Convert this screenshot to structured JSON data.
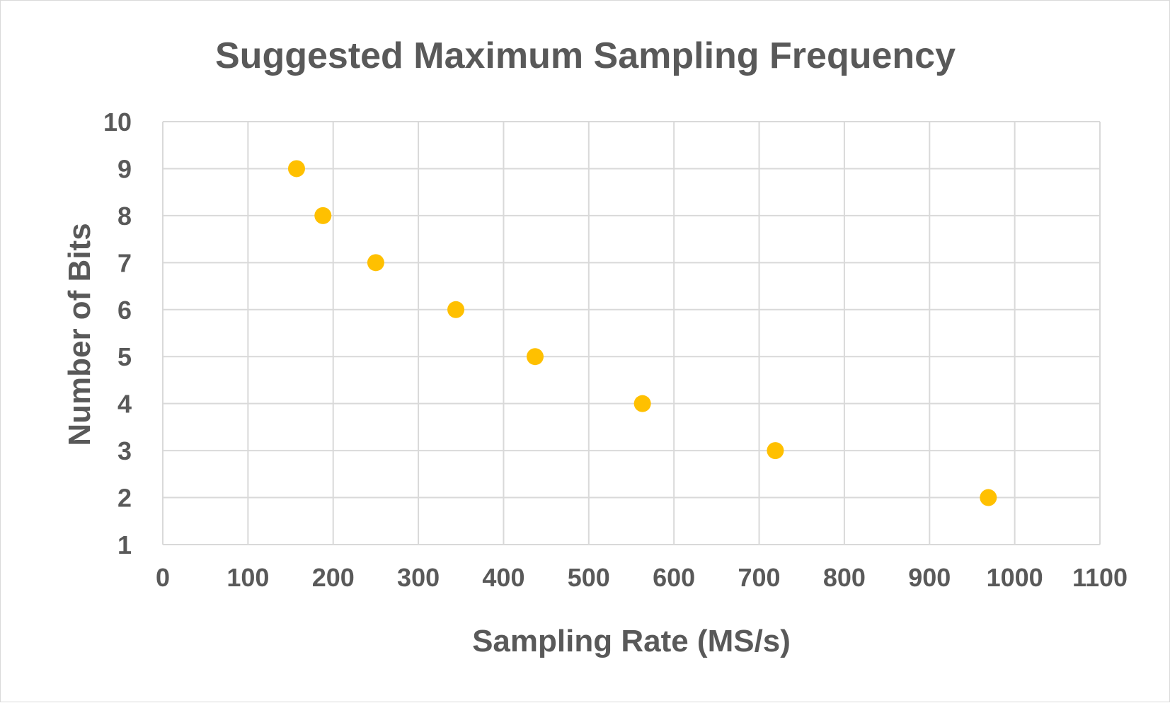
{
  "chart_data": {
    "type": "scatter",
    "title": "Suggested Maximum Sampling Frequency",
    "xlabel": "Sampling Rate (MS/s)",
    "ylabel": "Number of Bits",
    "xlim": [
      0,
      1100
    ],
    "ylim": [
      1,
      10
    ],
    "xticks": [
      0,
      100,
      200,
      300,
      400,
      500,
      600,
      700,
      800,
      900,
      1000,
      1100
    ],
    "yticks": [
      1,
      2,
      3,
      4,
      5,
      6,
      7,
      8,
      9,
      10
    ],
    "grid": true,
    "legend": "none",
    "series": [
      {
        "color": "#ffc000",
        "points": [
          {
            "x": 157,
            "y": 9
          },
          {
            "x": 188,
            "y": 8
          },
          {
            "x": 250,
            "y": 7
          },
          {
            "x": 344,
            "y": 6
          },
          {
            "x": 437,
            "y": 5
          },
          {
            "x": 563,
            "y": 4
          },
          {
            "x": 719,
            "y": 3
          },
          {
            "x": 969,
            "y": 2
          }
        ]
      }
    ]
  }
}
